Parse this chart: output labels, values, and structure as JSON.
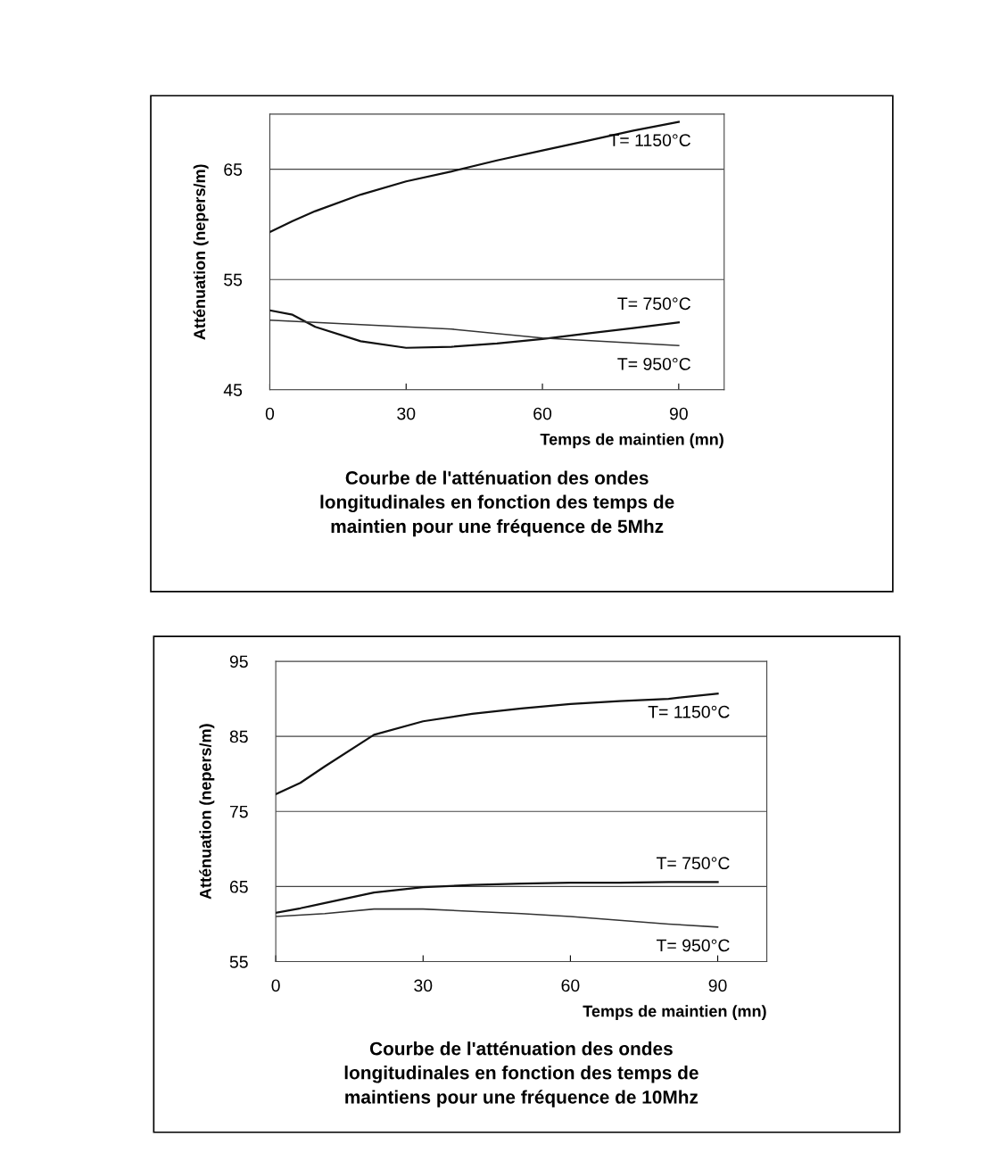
{
  "chart_data": [
    {
      "type": "line",
      "title": "Courbe de l'atténuation des ondes\nlongitudinales en fonction des temps de\nmaintien pour une fréquence de 5Mhz",
      "xlabel": "Temps de maintien (mn)",
      "ylabel": "Atténuation (nepers/m)",
      "xlim": [
        0,
        100
      ],
      "xticks": [
        0,
        30,
        60,
        90
      ],
      "ylim": [
        45,
        70
      ],
      "yticks": [
        45,
        55,
        65
      ],
      "grid": "y",
      "legend": false,
      "marker": "none",
      "line_style": "solid",
      "series": [
        {
          "name": "T= 1150°C",
          "color": "#111111",
          "x": [
            0,
            5,
            10,
            20,
            30,
            40,
            50,
            60,
            70,
            80,
            90
          ],
          "values": [
            59.3,
            60.3,
            61.2,
            62.7,
            63.9,
            64.8,
            65.8,
            66.7,
            67.6,
            68.5,
            69.3
          ]
        },
        {
          "name": "T= 750°C",
          "color": "#111111",
          "x": [
            0,
            5,
            10,
            20,
            30,
            40,
            50,
            60,
            70,
            80,
            90
          ],
          "values": [
            52.2,
            51.8,
            50.7,
            49.4,
            48.8,
            48.9,
            49.2,
            49.6,
            50.1,
            50.6,
            51.1
          ]
        },
        {
          "name": "T= 950°C",
          "color": "#333333",
          "x": [
            0,
            20,
            40,
            60,
            90
          ],
          "values": [
            51.3,
            50.9,
            50.5,
            49.7,
            49.0
          ]
        }
      ]
    },
    {
      "type": "line",
      "title": "Courbe de l'atténuation des ondes\nlongitudinales en fonction des temps de\nmaintiens pour une fréquence de 10Mhz",
      "xlabel": "Temps de maintien (mn)",
      "ylabel": "Atténuation (nepers/m)",
      "xlim": [
        0,
        100
      ],
      "xticks": [
        0,
        30,
        60,
        90
      ],
      "ylim": [
        55,
        95
      ],
      "yticks": [
        55,
        65,
        75,
        85,
        95
      ],
      "grid": "y",
      "legend": false,
      "marker": "none",
      "line_style": "solid",
      "series": [
        {
          "name": "T= 1150°C",
          "color": "#111111",
          "x": [
            0,
            5,
            10,
            20,
            30,
            40,
            50,
            60,
            70,
            80,
            90
          ],
          "values": [
            77.3,
            78.8,
            81.0,
            85.2,
            87.0,
            88.0,
            88.7,
            89.3,
            89.7,
            90.0,
            90.7
          ]
        },
        {
          "name": "T= 750°C",
          "color": "#111111",
          "x": [
            0,
            5,
            10,
            20,
            30,
            40,
            50,
            60,
            70,
            80,
            90
          ],
          "values": [
            61.5,
            62.1,
            62.8,
            64.2,
            64.9,
            65.2,
            65.4,
            65.5,
            65.5,
            65.6,
            65.6
          ]
        },
        {
          "name": "T= 950°C",
          "color": "#333333",
          "x": [
            0,
            10,
            20,
            30,
            40,
            50,
            60,
            70,
            80,
            90
          ],
          "values": [
            61.0,
            61.4,
            62.0,
            62.0,
            61.7,
            61.4,
            61.0,
            60.5,
            60.0,
            59.6
          ]
        }
      ]
    }
  ]
}
